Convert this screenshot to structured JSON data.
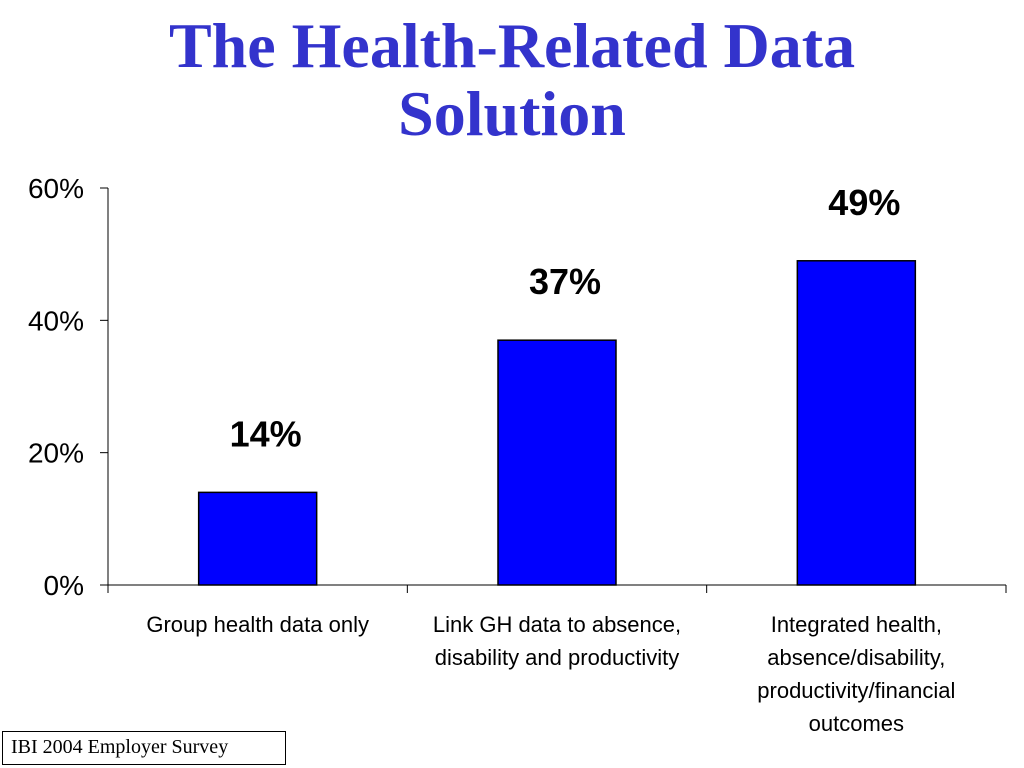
{
  "title": {
    "line1": "The Health-Related Data",
    "line2": "Solution"
  },
  "source_note": "IBI 2004 Employer Survey",
  "colors": {
    "title": "#3333cc",
    "bar_fill": "#0000ff",
    "bar_stroke": "#000000"
  },
  "chart_data": {
    "type": "bar",
    "categories": [
      [
        "Group health data only"
      ],
      [
        "Link GH data to absence,",
        "disability and productivity"
      ],
      [
        "Integrated health,",
        "absence/disability,",
        "productivity/financial",
        "outcomes"
      ]
    ],
    "values": [
      14,
      37,
      49
    ],
    "data_labels": [
      "14%",
      "37%",
      "49%"
    ],
    "y_ticks": [
      0,
      20,
      40,
      60
    ],
    "y_tick_labels": [
      "0%",
      "20%",
      "40%",
      "60%"
    ],
    "ylim": [
      0,
      60
    ],
    "grid": false,
    "legend": "none"
  }
}
